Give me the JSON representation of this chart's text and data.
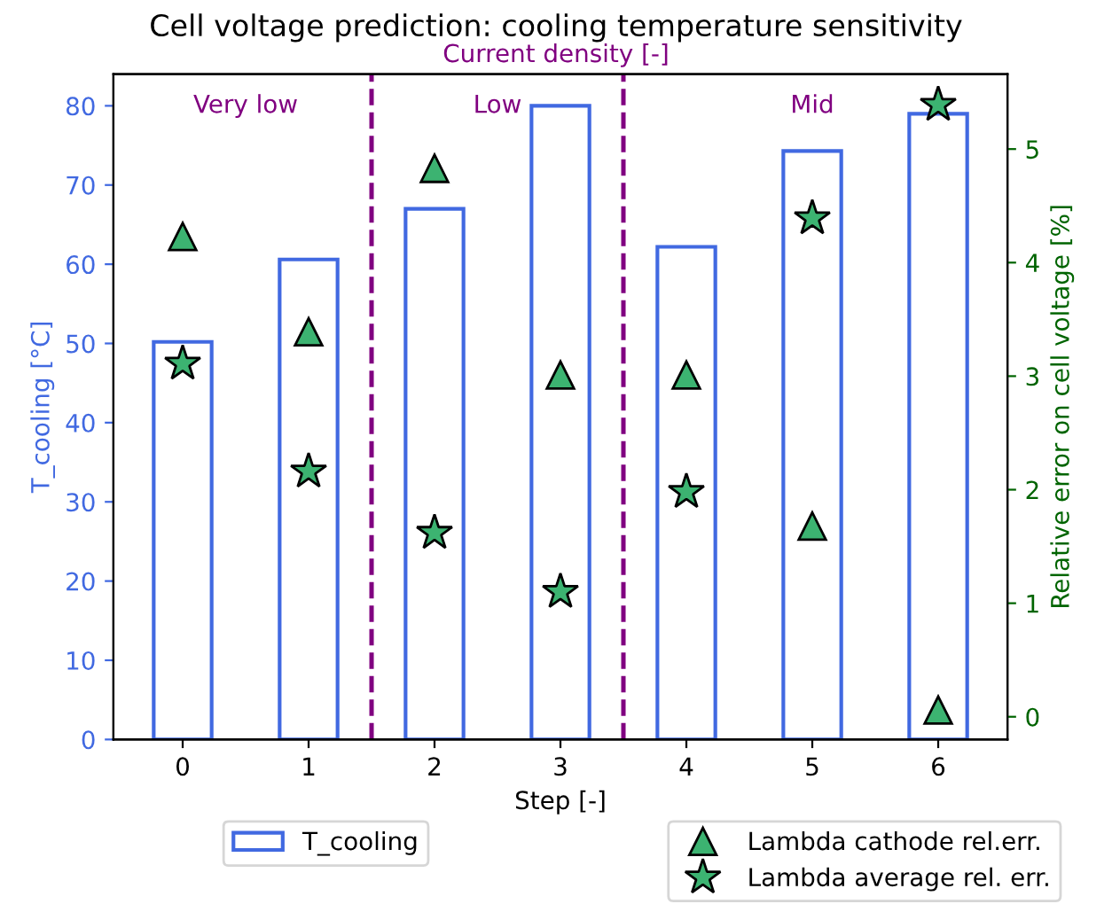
{
  "chart_data": {
    "type": "bar",
    "title": "Cell voltage prediction: cooling temperature sensitivity",
    "subtitle": "Current density [-]",
    "xlabel": "Step [-]",
    "ylabel": "T_cooling [°C]",
    "y2label": "Relative error on cell voltage [%]",
    "categories": [
      "0",
      "1",
      "2",
      "3",
      "4",
      "5",
      "6"
    ],
    "series": [
      {
        "name": "T_cooling",
        "color": "#4169e1",
        "values": [
          50.2,
          60.6,
          67,
          80,
          62.2,
          74.3,
          79
        ]
      },
      {
        "name": "Lambda cathode rel.err.",
        "type": "scatter",
        "axis": "y2",
        "marker": "triangle",
        "color": "#3cb371",
        "values": [
          4.23,
          3.39,
          4.83,
          3.01,
          3.01,
          1.68,
          0.06
        ]
      },
      {
        "name": "Lambda average rel. err.",
        "type": "scatter",
        "axis": "y2",
        "marker": "star",
        "color": "#3cb371",
        "values": [
          3.11,
          2.16,
          1.62,
          1.1,
          1.98,
          4.39,
          5.39
        ]
      }
    ],
    "ylim": [
      0,
      84
    ],
    "yticks": [
      0,
      10,
      20,
      30,
      40,
      50,
      60,
      70,
      80
    ],
    "y2lim": [
      -0.2,
      5.66
    ],
    "y2ticks": [
      0,
      1,
      2,
      3,
      4,
      5
    ],
    "annotations": [
      "Very low",
      "Low",
      "Mid"
    ],
    "legend": "bottom",
    "grid": false
  }
}
